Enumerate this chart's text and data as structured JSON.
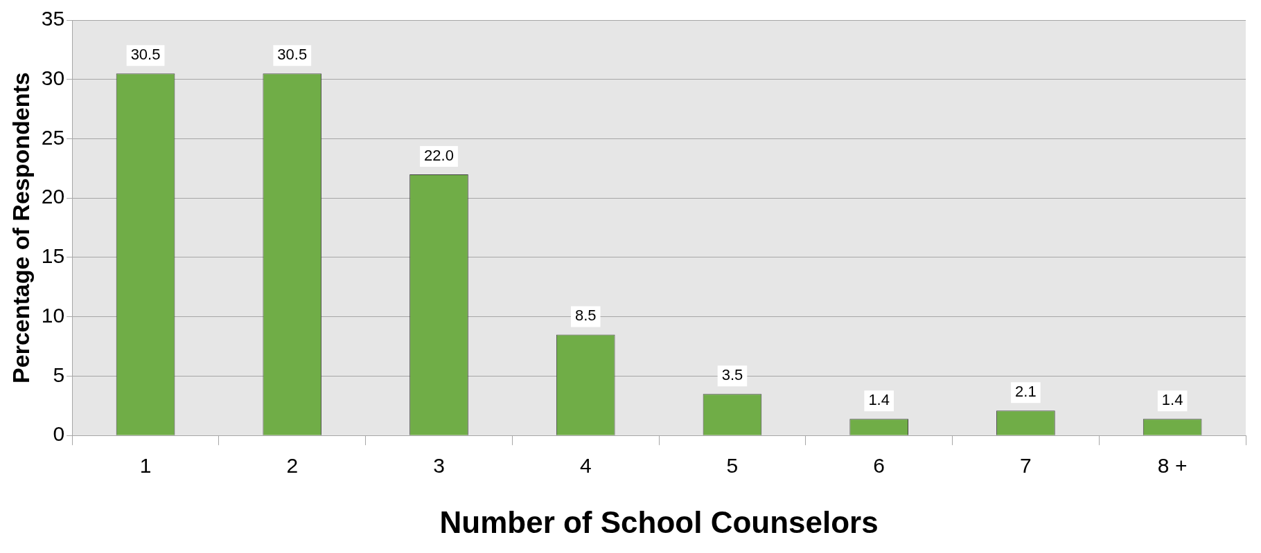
{
  "chart_data": {
    "type": "bar",
    "xlabel": "Number of School Counselors",
    "ylabel": "Percentage of Respondents",
    "categories": [
      "1",
      "2",
      "3",
      "4",
      "5",
      "6",
      "7",
      "8 +"
    ],
    "values": [
      30.5,
      30.5,
      22.0,
      8.5,
      3.5,
      1.4,
      2.1,
      1.4
    ],
    "value_labels": [
      "30.5",
      "30.5",
      "22.0",
      "8.5",
      "3.5",
      "1.4",
      "2.1",
      "1.4"
    ],
    "color": "#70ad47",
    "ylim": [
      0,
      35
    ],
    "yticks": [
      0,
      5,
      10,
      15,
      20,
      25,
      30,
      35
    ],
    "grid": "y",
    "legend": false
  }
}
